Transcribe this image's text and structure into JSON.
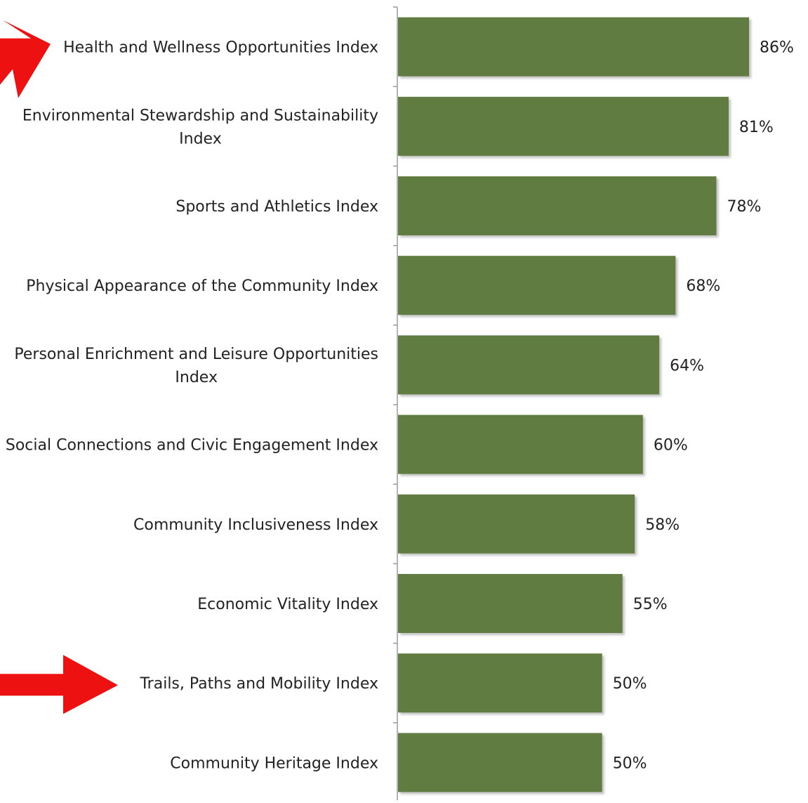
{
  "chart_data": {
    "type": "bar",
    "orientation": "horizontal",
    "categories": [
      "Health and Wellness Opportunities Index",
      "Environmental Stewardship and Sustainability Index",
      "Sports and Athletics Index",
      "Physical Appearance of the Community Index",
      "Personal Enrichment and Leisure Opportunities Index",
      "Social Connections and Civic Engagement Index",
      "Community Inclusiveness Index",
      "Economic Vitality Index",
      "Trails, Paths and Mobility Index",
      "Community Heritage Index"
    ],
    "category_lines": [
      [
        "Health and Wellness Opportunities Index"
      ],
      [
        "Environmental Stewardship and Sustainability",
        "Index"
      ],
      [
        "Sports and Athletics Index"
      ],
      [
        "Physical Appearance of the Community Index"
      ],
      [
        "Personal Enrichment and Leisure Opportunities",
        "Index"
      ],
      [
        "Social Connections and Civic Engagement Index"
      ],
      [
        "Community Inclusiveness Index"
      ],
      [
        "Economic Vitality Index"
      ],
      [
        "Trails, Paths and Mobility Index"
      ],
      [
        "Community Heritage Index"
      ]
    ],
    "values": [
      86,
      81,
      78,
      68,
      64,
      60,
      58,
      55,
      50,
      50
    ],
    "value_labels": [
      "86%",
      "81%",
      "78%",
      "68%",
      "64%",
      "60%",
      "58%",
      "55%",
      "50%",
      "50%"
    ],
    "unit": "%",
    "xlim": [
      0,
      100
    ],
    "grid": false,
    "bar_color": "#617c3f",
    "annotations": [
      {
        "type": "arrow",
        "points_to": "Health and Wellness Opportunities Index",
        "color": "#ee1111"
      },
      {
        "type": "arrow",
        "points_to": "Trails, Paths and Mobility Index",
        "color": "#ee1111"
      }
    ]
  }
}
